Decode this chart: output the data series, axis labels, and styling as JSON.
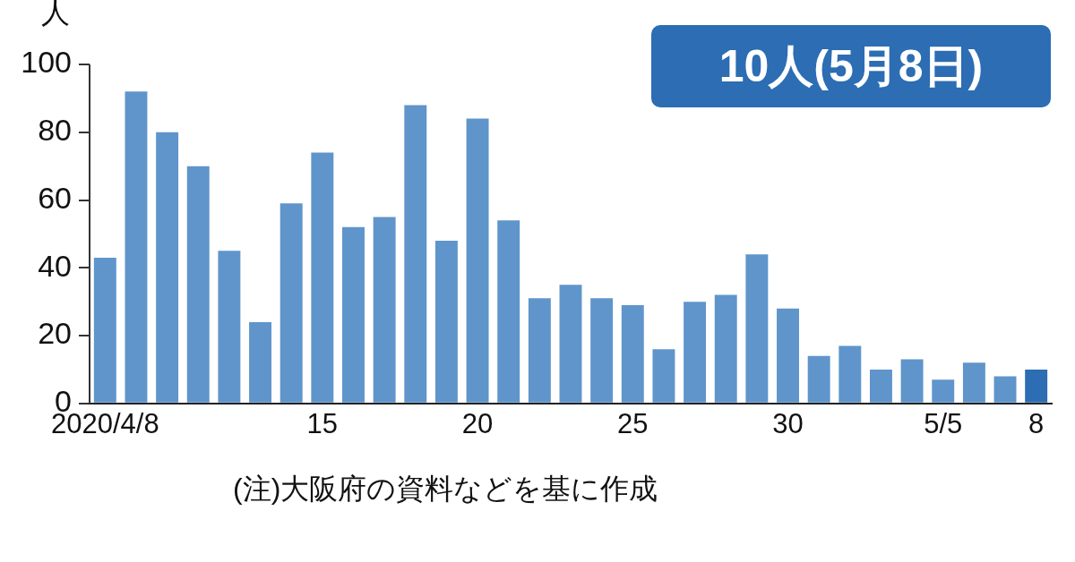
{
  "chart_data": {
    "type": "bar",
    "ylabel": "人",
    "categories": [
      "2020/4/8",
      null,
      null,
      null,
      null,
      null,
      null,
      "15",
      null,
      null,
      null,
      null,
      "20",
      null,
      null,
      null,
      null,
      "25",
      null,
      null,
      null,
      null,
      "30",
      null,
      null,
      null,
      null,
      "5/5",
      null,
      null,
      "8"
    ],
    "values": [
      43,
      92,
      80,
      70,
      45,
      24,
      59,
      74,
      52,
      55,
      88,
      48,
      84,
      54,
      31,
      35,
      31,
      29,
      16,
      30,
      32,
      44,
      28,
      14,
      17,
      10,
      13,
      7,
      12,
      8,
      10
    ],
    "colors": [
      "#5f95cb",
      "#5f95cb",
      "#5f95cb",
      "#5f95cb",
      "#5f95cb",
      "#5f95cb",
      "#5f95cb",
      "#5f95cb",
      "#5f95cb",
      "#5f95cb",
      "#5f95cb",
      "#5f95cb",
      "#5f95cb",
      "#5f95cb",
      "#5f95cb",
      "#5f95cb",
      "#5f95cb",
      "#5f95cb",
      "#5f95cb",
      "#5f95cb",
      "#5f95cb",
      "#5f95cb",
      "#5f95cb",
      "#5f95cb",
      "#5f95cb",
      "#5f95cb",
      "#5f95cb",
      "#5f95cb",
      "#5f95cb",
      "#5f95cb",
      "#2c6db3"
    ],
    "ylim": [
      0,
      100
    ],
    "yticks": [
      0,
      20,
      40,
      60,
      80,
      100
    ],
    "annotations": [
      "10人(5月8日)",
      "(注)大阪府の資料などを基に作成"
    ]
  }
}
